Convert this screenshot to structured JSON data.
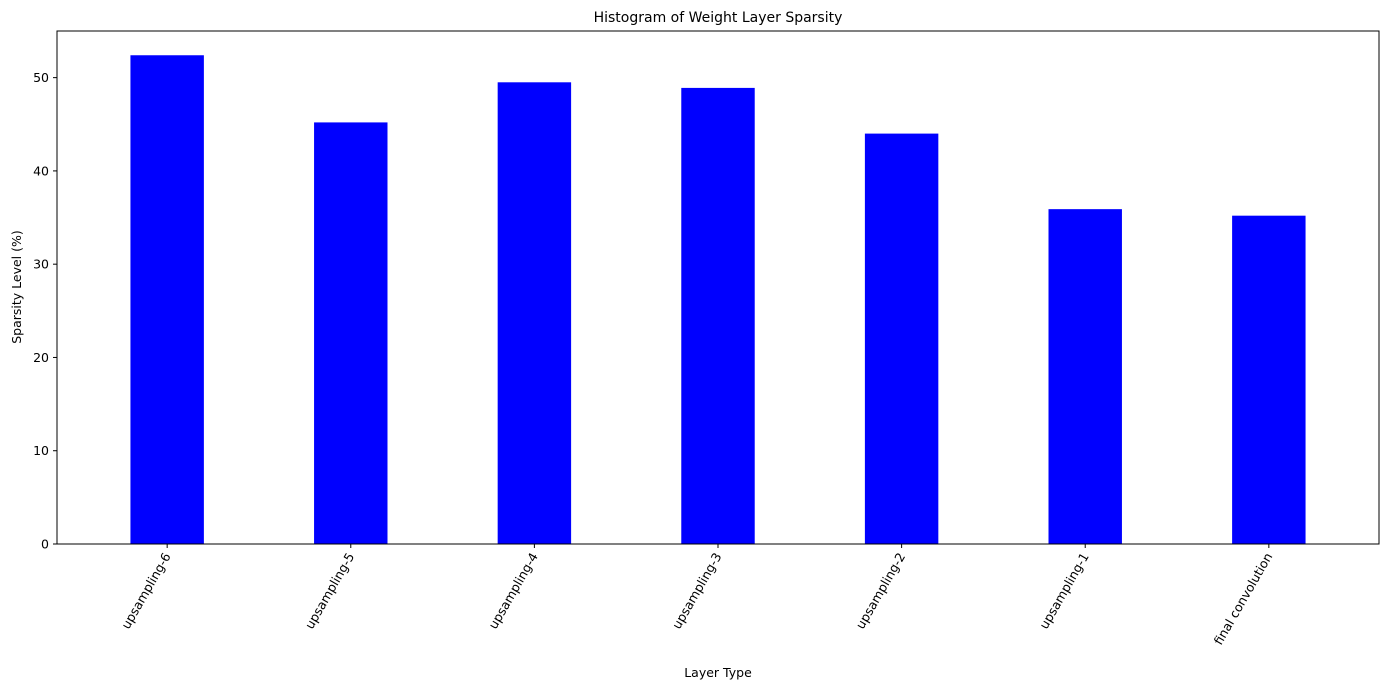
{
  "chart_data": {
    "type": "bar",
    "title": "Histogram of Weight Layer Sparsity",
    "xlabel": "Layer Type",
    "ylabel": "Sparsity Level (%)",
    "categories": [
      "upsampling-6",
      "upsampling-5",
      "upsampling-4",
      "upsampling-3",
      "upsampling-2",
      "upsampling-1",
      "final convolution"
    ],
    "values": [
      52.4,
      45.2,
      49.5,
      48.9,
      44.0,
      35.9,
      35.2
    ],
    "ylim": [
      0,
      55
    ],
    "yticks": [
      0,
      10,
      20,
      30,
      40,
      50
    ],
    "ytick_labels": [
      "0",
      "10",
      "20",
      "30",
      "40",
      "50"
    ],
    "bar_color": "#0000ff",
    "grid": false,
    "legend": false
  }
}
